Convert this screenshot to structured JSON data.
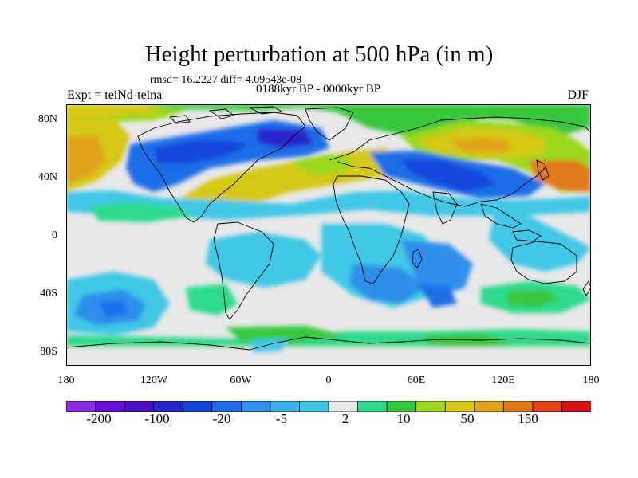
{
  "title": "Height perturbation at 500 hPa (in m)",
  "stats": "rmsd= 16.2227 diff= 4.09543e-08",
  "experiment": "Expt = teiNd-teina",
  "period": "0188kyr BP - 0000kyr BP",
  "season": "DJF",
  "lat_labels": [
    "80N",
    "40N",
    "0",
    "40S",
    "80S"
  ],
  "lon_labels": [
    "180",
    "120W",
    "60W",
    "0",
    "60E",
    "120E",
    "180"
  ],
  "colorbar": {
    "colors": [
      "#8b2be2",
      "#6a0dd6",
      "#4b10c8",
      "#2626cc",
      "#1446dc",
      "#1f6ee8",
      "#2f8fea",
      "#3cb0ea",
      "#3fc8e6",
      "#e8e8e8",
      "#2edb8c",
      "#38c83c",
      "#9bd81e",
      "#d6c814",
      "#e0a31a",
      "#e07a1e",
      "#e44418",
      "#d61212"
    ],
    "labels": [
      "-200",
      "-100",
      "-20",
      "-5",
      "2",
      "10",
      "50",
      "150"
    ]
  }
}
